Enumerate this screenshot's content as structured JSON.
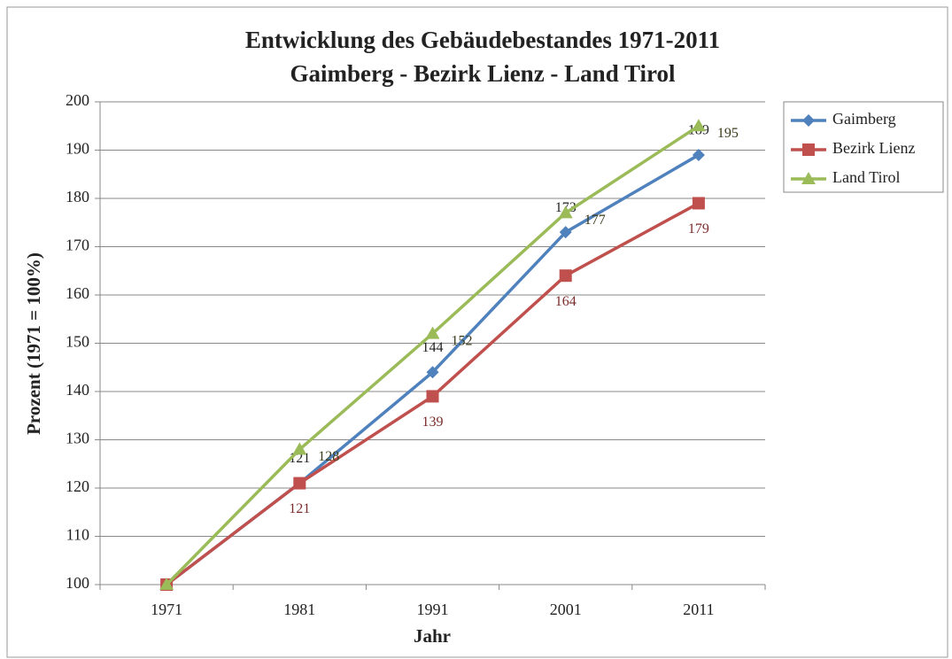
{
  "chart_data": {
    "type": "line",
    "title": "Entwicklung des Gebäudebestandes 1971-2011",
    "subtitle": "Gaimberg - Bezirk Lienz - Land Tirol",
    "x_label": "Jahr",
    "y_label": "Prozent (1971 = 100%)",
    "categories": [
      "1971",
      "1981",
      "1991",
      "2001",
      "2011"
    ],
    "series": [
      {
        "name": "Gaimberg",
        "color": "#4f81bd",
        "marker": "diamond",
        "values": [
          100,
          121,
          144,
          173,
          189
        ],
        "value_labels": [
          null,
          "121",
          "144",
          "173",
          "189"
        ]
      },
      {
        "name": "Bezirk Lienz",
        "color": "#c0504d",
        "marker": "square",
        "values": [
          100,
          121,
          139,
          164,
          179
        ],
        "value_labels": [
          null,
          "121",
          "139",
          "164",
          "179"
        ]
      },
      {
        "name": "Land Tirol",
        "color": "#9bbb59",
        "marker": "triangle",
        "values": [
          100,
          128,
          152,
          177,
          195
        ],
        "value_labels": [
          null,
          "128",
          "152",
          "177",
          "195"
        ]
      }
    ],
    "ylim": [
      100,
      200
    ],
    "yticks": [
      100,
      110,
      120,
      130,
      140,
      150,
      160,
      170,
      180,
      190,
      200
    ],
    "grid": true,
    "legend": "right"
  }
}
